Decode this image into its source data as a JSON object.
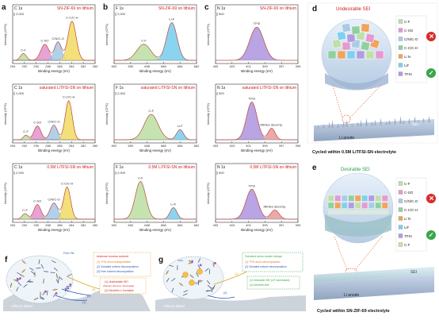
{
  "panel_letters": [
    "a",
    "b",
    "c",
    "d",
    "e",
    "f",
    "g"
  ],
  "rows": [
    {
      "panels": [
        {
          "core": "C 1s",
          "title": "SN-ZIF-69 on lithium",
          "scale": "2,000",
          "xticks": [
            "294",
            "292",
            "290",
            "288",
            "286",
            "284",
            "282",
            "280"
          ],
          "peaks": [
            "C-F",
            "C-SO",
            "C/N/C-O",
            "C-C/C-H"
          ],
          "xlabel": "Binding energy (eV)",
          "ylabel": "Intensity (CPS)"
        },
        {
          "core": "F 1s",
          "title": "SN-ZIF-69 on lithium",
          "scale": "2,000",
          "xticks": [
            "692",
            "690",
            "688",
            "686",
            "684",
            "682"
          ],
          "peaks": [
            "C-F",
            "Li-F"
          ],
          "xlabel": "Binding energy (eV)",
          "ylabel": "Intensity (CPS)"
        },
        {
          "core": "N 1s",
          "title": "SN-ZIF-69 on lithium",
          "scale": "500",
          "xticks": [
            "405",
            "403",
            "401",
            "399",
            "397",
            "395"
          ],
          "peaks": [
            "TFSI"
          ],
          "xlabel": "Binding energy (eV)",
          "ylabel": "Intensity (CPS)"
        }
      ]
    },
    {
      "panels": [
        {
          "core": "C 1s",
          "title": "saturated LiTFSI-SN on lithium",
          "scale": "2,000",
          "xticks": [
            "294",
            "292",
            "290",
            "288",
            "286",
            "284",
            "282",
            "280"
          ],
          "peaks": [
            "C-SO",
            "C/N/C-O",
            "C-C/C-H",
            "C-F"
          ],
          "xlabel": "Binding energy (eV)",
          "ylabel": "Intensity (CPS)"
        },
        {
          "core": "F 1s",
          "title": "saturated LiTFSI-SN on lithium",
          "scale": "2,000",
          "xticks": [
            "692",
            "690",
            "688",
            "686",
            "684",
            "682"
          ],
          "peaks": [
            "C-F",
            "Li-F"
          ],
          "xlabel": "Binding energy (eV)",
          "ylabel": "Intensity (CPS)"
        },
        {
          "core": "N 1s",
          "title": "saturated LiTFSI-SN on lithium",
          "scale": "500",
          "xticks": [
            "405",
            "403",
            "401",
            "399",
            "397",
            "395"
          ],
          "peaks": [
            "TFSI",
            "Nitriles decomp."
          ],
          "xlabel": "Binding energy (eV)",
          "ylabel": "Intensity (CPS)"
        }
      ]
    },
    {
      "panels": [
        {
          "core": "C 1s",
          "title": "0.5M LiTFSI-SN on lithium",
          "scale": "2,000",
          "xticks": [
            "294",
            "292",
            "290",
            "288",
            "286",
            "284",
            "282",
            "280"
          ],
          "peaks": [
            "C-SO",
            "C/N/C-O",
            "C-C/C-H",
            "C-F"
          ],
          "xlabel": "Binding energy (eV)",
          "ylabel": "Intensity (CPS)"
        },
        {
          "core": "F 1s",
          "title": "0.5M LiTFSI-SN on lithium",
          "scale": "2,000",
          "xticks": [
            "692",
            "690",
            "688",
            "686",
            "684",
            "682"
          ],
          "peaks": [
            "C-F",
            "Li-F"
          ],
          "xlabel": "Binding energy (eV)",
          "ylabel": "Intensity (CPS)"
        },
        {
          "core": "N 1s",
          "title": "0.5M LiTFSI-SN on lithium",
          "scale": "500",
          "xticks": [
            "405",
            "403",
            "401",
            "399",
            "397",
            "395"
          ],
          "peaks": [
            "TFSI",
            "Nitriles decomp."
          ],
          "xlabel": "Binding energy (eV)",
          "ylabel": "Intensity (CPS)"
        }
      ]
    }
  ],
  "panel_d": {
    "title": "Undesirable SEI",
    "legend": [
      "C-F",
      "C-SO",
      "C/N/C-O",
      "C-C/C-H",
      "Li N",
      "LiF",
      "TFSI"
    ],
    "electrode": "Li anode",
    "sei": "SEI",
    "caption": "Cycled within 0.5M LiTFSI-SN electrolyte"
  },
  "panel_e": {
    "title": "Desirable SEI",
    "legend": [
      "C-F",
      "C-SO",
      "C/N/C-O",
      "C-C/C-H",
      "Li N",
      "LiF",
      "TFSI",
      "C-F"
    ],
    "electrode": "Li anode",
    "sei": "SEI",
    "caption": "Cycled within SN-ZIF-69 electrolyte"
  },
  "panel_f": {
    "title": "Adverse excess solvent",
    "items": [
      "(1) TFSI anion transportation",
      "(2) Solvated solvent decomposition",
      "(3) Free solvent decomposition"
    ],
    "results": [
      "(1) Undesirable SEI",
      "(Solvent decomp. dominated)",
      "(2) Dendritic Li formation"
    ],
    "free": "Free SN",
    "metal": "Lithium Metal",
    "marks": [
      "(3)",
      "(2)",
      "(1)"
    ]
  },
  "panel_g": {
    "title": "Solvated anion cluster design",
    "items": [
      "(1) TFSI anion decomposition",
      "(2) Solvated solvent decomposition"
    ],
    "results": [
      "(1) Desirable SEI (LiF dominated)",
      "(2) Dendrite-free"
    ],
    "metal": "Lithium Metal",
    "marks": [
      "(1)",
      "(2)"
    ],
    "sn": "SN"
  }
}
